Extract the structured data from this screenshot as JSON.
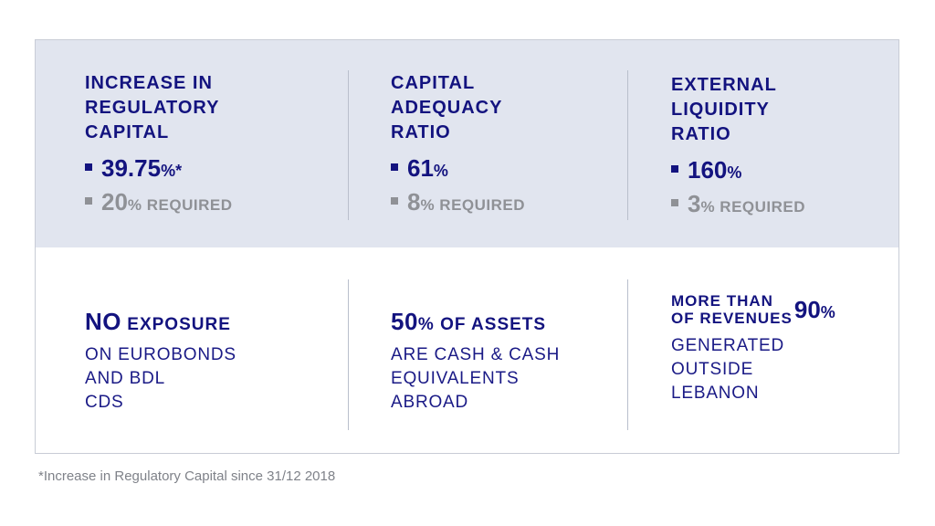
{
  "top_row": [
    {
      "heading": [
        "INCREASE IN",
        "REGULATORY",
        "CAPITAL"
      ],
      "value": "39.75",
      "value_unit": "%*",
      "required_value": "20",
      "required_unit": "% REQUIRED"
    },
    {
      "heading": [
        "CAPITAL",
        "ADEQUACY",
        "RATIO"
      ],
      "value": "61",
      "value_unit": "%",
      "required_value": "8",
      "required_unit": "% REQUIRED"
    },
    {
      "heading": [
        "EXTERNAL",
        "LIQUIDITY",
        "RATIO"
      ],
      "value": "160",
      "value_unit": "%",
      "required_value": "3",
      "required_unit": "% REQUIRED"
    }
  ],
  "bottom_row": [
    {
      "emphasis_big": "NO",
      "emphasis_small": " EXPOSURE",
      "lines": [
        "ON EUROBONDS",
        "AND BDL",
        "CDS"
      ]
    },
    {
      "emphasis_big": "50",
      "emphasis_small": "% OF ASSETS",
      "lines": [
        "ARE CASH & CASH",
        "EQUIVALENTS",
        "ABROAD"
      ]
    },
    {
      "label_line1": "MORE THAN",
      "label_line2": "OF REVENUES",
      "number": "90",
      "number_unit": "%",
      "lines": [
        "GENERATED",
        "OUTSIDE",
        "LEBANON"
      ]
    }
  ],
  "footnote": "*Increase in Regulatory Capital since 31/12 2018",
  "colors": {
    "navy": "#13137f",
    "grey_text": "#8f9196",
    "band": "#e1e5ef",
    "divider": "#b9bfcc"
  }
}
